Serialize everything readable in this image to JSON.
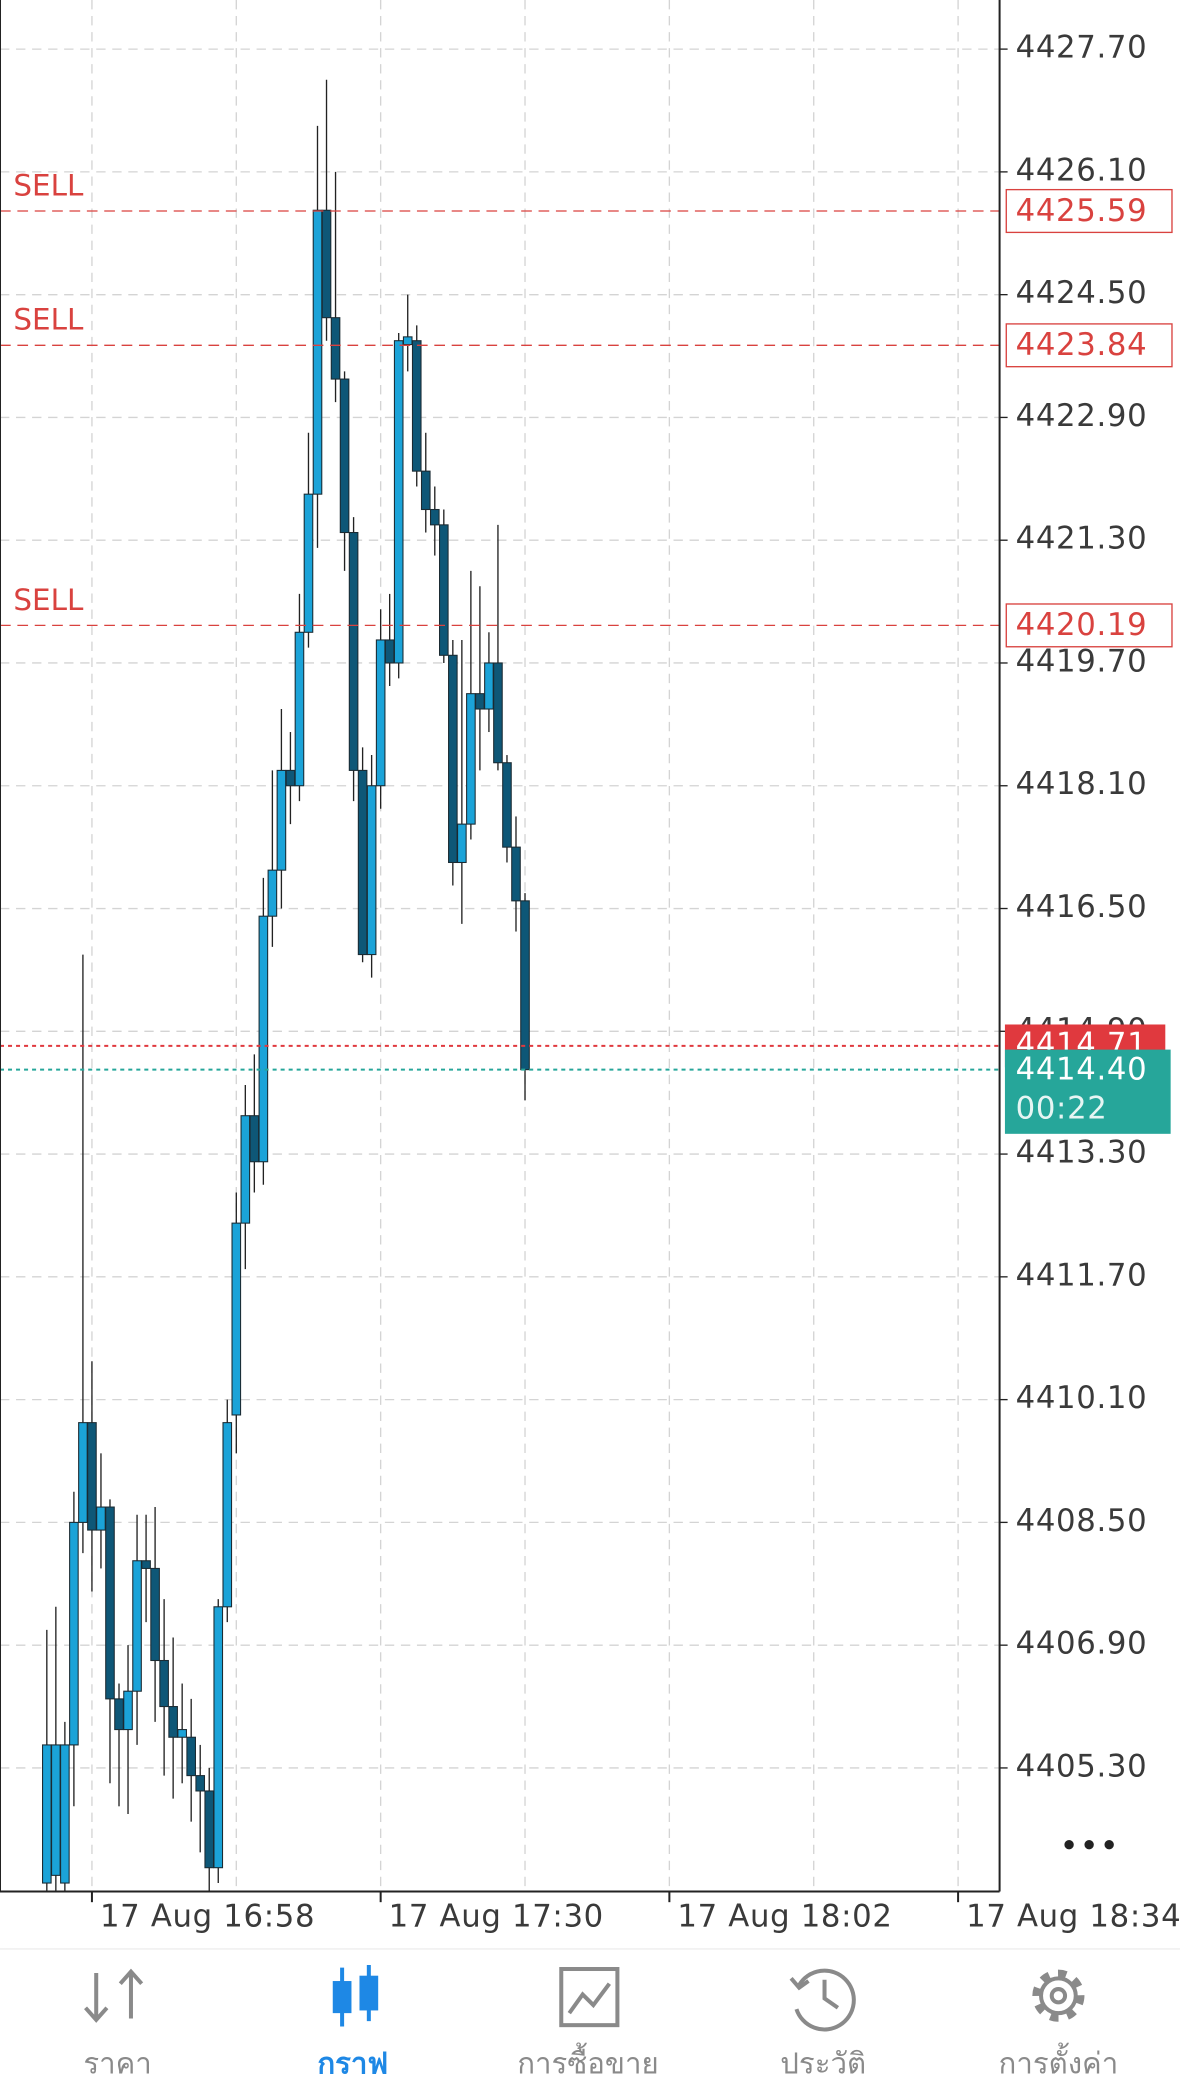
{
  "chart_data": {
    "type": "candlestick",
    "ylim": [
      4403.69,
      4428.34
    ],
    "yticks": [
      {
        "value": 4405.3,
        "label": "4405.30"
      },
      {
        "value": 4406.9,
        "label": "4406.90"
      },
      {
        "value": 4408.5,
        "label": "4408.50"
      },
      {
        "value": 4410.1,
        "label": "4410.10"
      },
      {
        "value": 4411.7,
        "label": "4411.70"
      },
      {
        "value": 4413.3,
        "label": "4413.30"
      },
      {
        "value": 4414.9,
        "label": "4414.90"
      },
      {
        "value": 4416.5,
        "label": "4416.50"
      },
      {
        "value": 4418.1,
        "label": "4418.10"
      },
      {
        "value": 4419.7,
        "label": "4419.70"
      },
      {
        "value": 4421.3,
        "label": "4421.30"
      },
      {
        "value": 4422.9,
        "label": "4422.90"
      },
      {
        "value": 4424.5,
        "label": "4424.50"
      },
      {
        "value": 4426.1,
        "label": "4426.10"
      },
      {
        "value": 4427.7,
        "label": "4427.70"
      }
    ],
    "xlim": [
      -5.19,
      105.6
    ],
    "xticks": [
      {
        "value": 5,
        "label": "17 Aug 16:58"
      },
      {
        "value": 37,
        "label": "17 Aug 17:30"
      },
      {
        "value": 69,
        "label": "17 Aug 18:02"
      },
      {
        "value": 101,
        "label": "17 Aug 18:34"
      }
    ],
    "grid": true,
    "up_color": "#1ba3d8",
    "down_color": "#0e5777",
    "series": [
      {
        "open": [
          4403.8,
          4403.9,
          4403.8,
          4405.6,
          4408.5,
          4409.8,
          4408.4,
          4408.7,
          4406.2,
          4405.8,
          4406.3,
          4408.0,
          4407.9,
          4406.7,
          4406.1,
          4405.7,
          4405.7,
          4405.2,
          4405.0,
          4404.0,
          4407.4,
          4409.9,
          4412.4,
          4413.8,
          4413.2,
          4416.4,
          4417.0,
          4418.3,
          4418.1,
          4420.1,
          4421.9,
          4425.6,
          4424.2,
          4423.4,
          4421.4,
          4418.3,
          4415.9,
          4418.1,
          4420.0,
          4419.7,
          4423.85,
          4423.9,
          4422.2,
          4421.7,
          4421.5,
          4419.8,
          4417.1,
          4417.6,
          4419.3,
          4419.1,
          4419.7,
          4418.4,
          4417.3,
          4416.6
        ],
        "high": [
          4407.1,
          4407.4,
          4405.9,
          4408.9,
          4415.9,
          4410.6,
          4409.4,
          4408.8,
          4406.4,
          4406.9,
          4408.6,
          4408.6,
          4408.7,
          4407.5,
          4407.0,
          4406.4,
          4406.2,
          4405.6,
          4405.3,
          4407.5,
          4410.1,
          4412.8,
          4414.2,
          4414.6,
          4416.9,
          4418.3,
          4419.1,
          4418.8,
          4420.6,
          4422.7,
          4426.7,
          4427.3,
          4426.1,
          4423.5,
          4421.6,
          4418.6,
          4418.5,
          4420.4,
          4420.6,
          4424.0,
          4424.5,
          4424.1,
          4422.7,
          4422.0,
          4421.7,
          4420.0,
          4420.0,
          4420.9,
          4420.7,
          4420.1,
          4421.5,
          4418.5,
          4417.7,
          4416.7
        ],
        "low": [
          4403.5,
          4403.6,
          4403.5,
          4404.8,
          4408.1,
          4407.6,
          4407.9,
          4405.1,
          4404.8,
          4404.7,
          4405.6,
          4407.2,
          4405.9,
          4405.2,
          4404.9,
          4405.1,
          4404.6,
          4404.2,
          4403.7,
          4403.8,
          4407.2,
          4409.4,
          4411.8,
          4412.8,
          4412.9,
          4416.0,
          4416.5,
          4417.6,
          4417.9,
          4419.9,
          4421.2,
          4423.9,
          4423.1,
          4420.9,
          4417.9,
          4415.8,
          4415.6,
          4417.8,
          4419.4,
          4419.5,
          4423.5,
          4422.0,
          4421.4,
          4421.1,
          4419.7,
          4416.8,
          4416.3,
          4417.4,
          4418.3,
          4418.8,
          4418.3,
          4417.1,
          4416.2,
          4414.0
        ],
        "close": [
          4405.6,
          4405.6,
          4405.6,
          4408.5,
          4409.8,
          4408.4,
          4408.7,
          4406.2,
          4405.8,
          4406.3,
          4408.0,
          4407.9,
          4406.7,
          4406.1,
          4405.7,
          4405.8,
          4405.2,
          4405.0,
          4404.0,
          4407.4,
          4409.8,
          4412.4,
          4413.8,
          4413.2,
          4416.4,
          4417.0,
          4418.3,
          4418.1,
          4420.1,
          4421.9,
          4425.6,
          4424.2,
          4423.4,
          4421.4,
          4418.3,
          4415.9,
          4418.1,
          4420.0,
          4419.7,
          4423.9,
          4423.95,
          4422.2,
          4421.7,
          4421.5,
          4419.8,
          4417.1,
          4417.6,
          4419.3,
          4419.1,
          4419.7,
          4418.4,
          4417.3,
          4416.6,
          4414.4
        ]
      }
    ],
    "orders": [
      {
        "label": "SELL",
        "price": 4425.59
      },
      {
        "label": "SELL",
        "price": 4423.84
      },
      {
        "label": "SELL",
        "price": 4420.19
      }
    ],
    "order_color": "#d9423f",
    "ask": {
      "price": 4414.71,
      "color": "#e0393e"
    },
    "bid": {
      "price": 4414.4,
      "price_label": "4414.40",
      "timer": "00:22",
      "color": "#26a69a"
    }
  },
  "tabs": [
    {
      "label": "ราคา",
      "active": false
    },
    {
      "label": "กราฟ",
      "active": true
    },
    {
      "label": "การซื้อขาย",
      "active": false
    },
    {
      "label": "ประวัติ",
      "active": false
    },
    {
      "label": "การตั้งค่า",
      "active": false
    }
  ]
}
